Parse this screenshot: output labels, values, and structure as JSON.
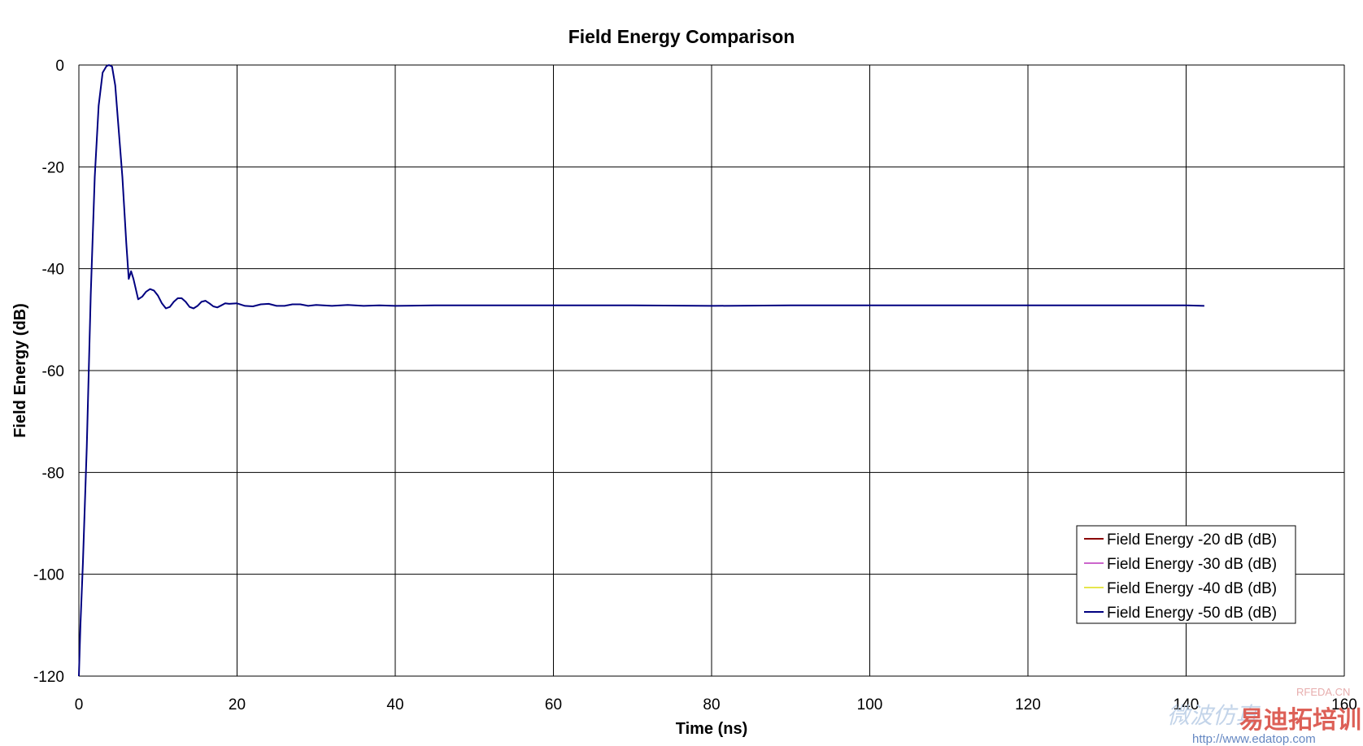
{
  "chart_data": {
    "type": "line",
    "title": "Field Energy Comparison",
    "xlabel": "Time (ns)",
    "ylabel": "Field Energy (dB)",
    "xlim": [
      0,
      160
    ],
    "ylim": [
      -120,
      0
    ],
    "xticks": [
      0,
      20,
      40,
      60,
      80,
      100,
      120,
      140,
      160
    ],
    "yticks": [
      0,
      -20,
      -40,
      -60,
      -80,
      -100,
      -120
    ],
    "grid": true,
    "legend_position": "bottom-right",
    "series": [
      {
        "name": "Field Energy -20 dB (dB)",
        "color": "#8b0000",
        "x": [],
        "y": []
      },
      {
        "name": "Field Energy -30 dB (dB)",
        "color": "#cc66cc",
        "x": [],
        "y": []
      },
      {
        "name": "Field Energy -40 dB (dB)",
        "color": "#e6e64d",
        "x": [],
        "y": []
      },
      {
        "name": "Field Energy -50 dB (dB)",
        "color": "#000080",
        "x": [
          0,
          0.2,
          0.5,
          1,
          1.5,
          2,
          2.5,
          3,
          3.5,
          3.8,
          4.2,
          4.6,
          5,
          5.5,
          6,
          6.3,
          6.6,
          6.9,
          7.2,
          7.5,
          8,
          8.5,
          9,
          9.5,
          10,
          10.5,
          11,
          11.5,
          12,
          12.5,
          13,
          13.5,
          14,
          14.5,
          15,
          15.5,
          16,
          16.5,
          17,
          17.5,
          18,
          18.5,
          19,
          20,
          21,
          22,
          23,
          24,
          25,
          26,
          27,
          28,
          29,
          30,
          32,
          34,
          36,
          38,
          40,
          45,
          50,
          60,
          70,
          80,
          90,
          100,
          110,
          120,
          130,
          140,
          142.3
        ],
        "y": [
          -120,
          -110,
          -98,
          -75,
          -45,
          -22,
          -8,
          -1.5,
          -0.2,
          0,
          -0.3,
          -4,
          -12,
          -22,
          -35,
          -42,
          -40.5,
          -42,
          -44,
          -46,
          -45.5,
          -44.5,
          -44,
          -44.3,
          -45.3,
          -46.8,
          -47.8,
          -47.5,
          -46.5,
          -45.8,
          -45.8,
          -46.5,
          -47.5,
          -47.8,
          -47.3,
          -46.5,
          -46.3,
          -46.8,
          -47.4,
          -47.6,
          -47.2,
          -46.8,
          -46.9,
          -46.8,
          -47.3,
          -47.4,
          -47.0,
          -46.9,
          -47.3,
          -47.3,
          -47.0,
          -47.0,
          -47.3,
          -47.1,
          -47.3,
          -47.1,
          -47.3,
          -47.2,
          -47.3,
          -47.2,
          -47.2,
          -47.2,
          -47.2,
          -47.3,
          -47.2,
          -47.2,
          -47.2,
          -47.2,
          -47.2,
          -47.2,
          -47.3
        ]
      }
    ]
  },
  "watermark": {
    "line1": "RFEDA.CN",
    "line2": "微波仿真",
    "brand": "易迪拓培训",
    "url": "http://www.edatop.com"
  }
}
